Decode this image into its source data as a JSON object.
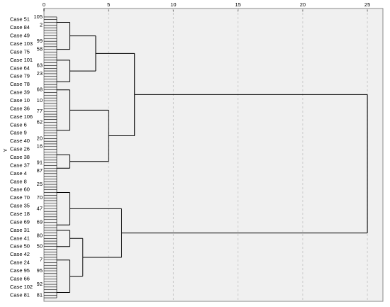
{
  "chart_data": {
    "type": "dendrogram",
    "y_label": "Y",
    "xlim": [
      0,
      26.2
    ],
    "xticks": [
      0,
      5,
      10,
      15,
      20,
      25
    ],
    "grid": true,
    "case_labels": [
      "Case 51",
      "Case 84",
      "Case 49",
      "Case 103",
      "Case 75",
      "Case 101",
      "Case 64",
      "Case 79",
      "Case 78",
      "Case 39",
      "Case 10",
      "Case 36",
      "Case 106",
      "Case 6",
      "Case 9",
      "Case 40",
      "Case 26",
      "Case 38",
      "Case 37",
      "Case 4",
      "Case 8",
      "Case 60",
      "Case 70",
      "Case 35",
      "Case 18",
      "Case 69",
      "Case 31",
      "Case 41",
      "Case 50",
      "Case 42",
      "Case 24",
      "Case 95",
      "Case 66",
      "Case 102",
      "Case 81"
    ],
    "leaf_ids": [
      "105",
      null,
      null,
      "2",
      null,
      null,
      null,
      null,
      null,
      "99",
      null,
      null,
      "58",
      null,
      null,
      null,
      null,
      null,
      "63",
      null,
      null,
      "23",
      null,
      null,
      null,
      null,
      null,
      "68",
      null,
      null,
      null,
      "10",
      null,
      null,
      null,
      "77",
      null,
      null,
      null,
      "62",
      null,
      null,
      null,
      null,
      null,
      "20",
      null,
      null,
      "16",
      null,
      null,
      null,
      null,
      null,
      "91",
      null,
      null,
      "87",
      null,
      null,
      null,
      null,
      "25",
      null,
      null,
      null,
      null,
      "70",
      null,
      null,
      null,
      "47",
      null,
      null,
      null,
      null,
      "69",
      null,
      null,
      null,
      null,
      "80",
      null,
      null,
      null,
      "50",
      null,
      null,
      null,
      null,
      "7",
      null,
      null,
      null,
      "95",
      null,
      null,
      null,
      null,
      "92",
      null,
      null,
      null,
      "81",
      null
    ],
    "tree": {
      "height": 25,
      "children": [
        {
          "height": 7,
          "children": [
            {
              "height": 4,
              "children": [
                {
                  "height": 2,
                  "rows": [
                    2,
                    12
                  ]
                },
                {
                  "height": 2,
                  "rows": [
                    16,
                    24
                  ]
                }
              ]
            },
            {
              "height": 5,
              "children": [
                {
                  "height": 2,
                  "rows": [
                    27,
                    42
                  ]
                },
                {
                  "height": 2,
                  "rows": [
                    51,
                    56
                  ]
                }
              ]
            }
          ]
        },
        {
          "height": 6,
          "children": [
            {
              "height": 2,
              "rows": [
                65,
                77
              ]
            },
            {
              "height": 3,
              "children": [
                {
                  "height": 2,
                  "rows": [
                    79,
                    85
                  ]
                },
                {
                  "height": 2,
                  "rows": [
                    90,
                    102
                  ]
                }
              ]
            }
          ]
        }
      ]
    }
  }
}
